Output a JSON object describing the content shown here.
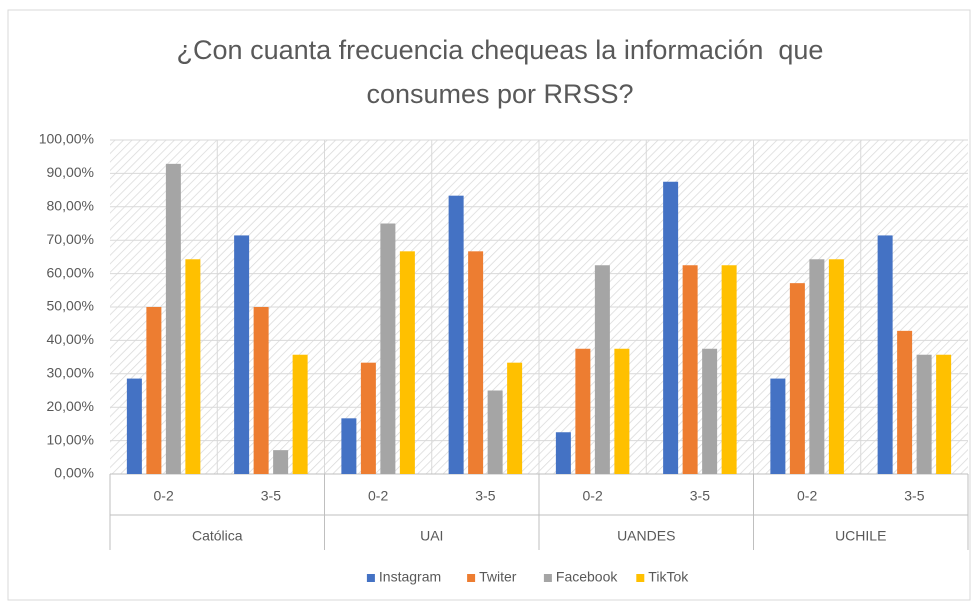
{
  "chart_data": {
    "type": "bar",
    "title": [
      "¿Con cuanta frecuencia chequeas la información  que",
      "consumes por RRSS?"
    ],
    "groups": [
      "Católica",
      "UAI",
      "UANDES",
      "UCHILE"
    ],
    "categories": [
      "0-2",
      "3-5",
      "0-2",
      "3-5",
      "0-2",
      "3-5",
      "0-2",
      "3-5"
    ],
    "series": [
      {
        "name": "Instagram",
        "color": "#4472c4",
        "values": [
          28.57,
          71.43,
          16.67,
          83.33,
          12.5,
          87.5,
          28.57,
          71.43
        ]
      },
      {
        "name": "Twiter",
        "color": "#ed7d31",
        "values": [
          50,
          50,
          33.33,
          66.67,
          37.5,
          62.5,
          57.14,
          42.86
        ]
      },
      {
        "name": "Facebook",
        "color": "#a5a5a5",
        "values": [
          92.86,
          7.14,
          75,
          25,
          62.5,
          37.5,
          64.29,
          35.71
        ]
      },
      {
        "name": "TikTok",
        "color": "#ffc000",
        "values": [
          64.29,
          35.71,
          66.67,
          33.33,
          37.5,
          62.5,
          64.29,
          35.71
        ]
      }
    ],
    "ylim": [
      0,
      100
    ],
    "yticks": [
      {
        "value": 0,
        "label": "0,00%"
      },
      {
        "value": 10,
        "label": "10,00%"
      },
      {
        "value": 20,
        "label": "20,00%"
      },
      {
        "value": 30,
        "label": "30,00%"
      },
      {
        "value": 40,
        "label": "40,00%"
      },
      {
        "value": 50,
        "label": "50,00%"
      },
      {
        "value": 60,
        "label": "60,00%"
      },
      {
        "value": 70,
        "label": "70,00%"
      },
      {
        "value": 80,
        "label": "80,00%"
      },
      {
        "value": 90,
        "label": "90,00%"
      },
      {
        "value": 100,
        "label": "100,00%"
      }
    ],
    "grid": true,
    "legend": "bottom"
  }
}
